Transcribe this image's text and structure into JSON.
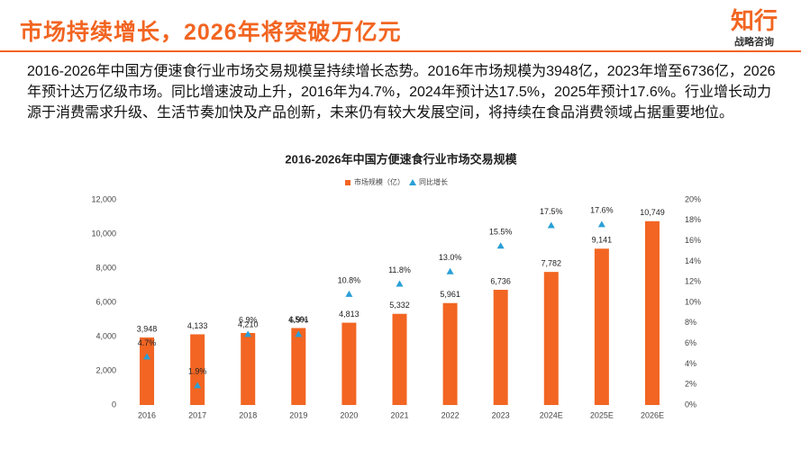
{
  "header": {
    "title": "市场持续增长，2026年将突破万亿元",
    "logo": "知行",
    "logo_sub": "战略咨询"
  },
  "paragraph": "2016-2026年中国方便速食行业市场交易规模呈持续增长态势。2016年市场规模为3948亿，2023年增至6736亿，2026年预计达万亿级市场。同比增速波动上升，2016年为4.7%，2024年预计达17.5%，2025年预计17.6%。行业增长动力源于消费需求升级、生活节奏加快及产品创新，未来仍有较大发展空间，将持续在食品消费领域占据重要地位。",
  "chart_data": {
    "type": "bar",
    "title": "2016-2026年中国方便速食行业市场交易规模",
    "legend": "top",
    "categories": [
      "2016",
      "2017",
      "2018",
      "2019",
      "2020",
      "2021",
      "2022",
      "2023",
      "2024E",
      "2025E",
      "2026E"
    ],
    "series": [
      {
        "name": "市场规模（亿）",
        "type": "bar",
        "color": "#f26522",
        "values": [
          3948,
          4133,
          4210,
          4501,
          4813,
          5332,
          5961,
          6736,
          7782,
          9141,
          10749
        ],
        "value_labels": [
          "3,948",
          "4,133",
          "4,210",
          "4,501",
          "4,813",
          "5,332",
          "5,961",
          "6,736",
          "7,782",
          "9,141",
          "10,749"
        ]
      },
      {
        "name": "同比增长",
        "type": "scatter",
        "axis": "y2",
        "color": "#2a9fd6",
        "values": [
          4.7,
          1.9,
          6.9,
          6.9,
          10.8,
          11.8,
          13.0,
          15.5,
          17.5,
          17.6,
          null
        ],
        "value_labels": [
          "4.7%",
          "1.9%",
          "6.9%",
          "6.9%",
          "10.8%",
          "11.8%",
          "13.0%",
          "15.5%",
          "17.5%",
          "17.6%",
          null
        ]
      }
    ],
    "ylim": [
      0,
      12000
    ],
    "yticks": [
      0,
      {
        "value": 2000,
        "label": "2,000"
      },
      {
        "value": 4000,
        "label": "4,000"
      },
      {
        "value": 6000,
        "label": "6,000"
      },
      {
        "value": 8000,
        "label": "8,000"
      },
      {
        "value": 10000,
        "label": "10,000"
      },
      {
        "value": 12000,
        "label": "12,000"
      }
    ],
    "y2lim": [
      0,
      20
    ],
    "y2ticks": [
      {
        "value": 0,
        "label": "0%"
      },
      {
        "value": 2,
        "label": "2%"
      },
      {
        "value": 4,
        "label": "4%"
      },
      {
        "value": 6,
        "label": "6%"
      },
      {
        "value": 8,
        "label": "8%"
      },
      {
        "value": 10,
        "label": "10%"
      },
      {
        "value": 12,
        "label": "12%"
      },
      {
        "value": 14,
        "label": "14%"
      },
      {
        "value": 16,
        "label": "16%"
      },
      {
        "value": 18,
        "label": "18%"
      },
      {
        "value": 20,
        "label": "20%"
      }
    ]
  }
}
